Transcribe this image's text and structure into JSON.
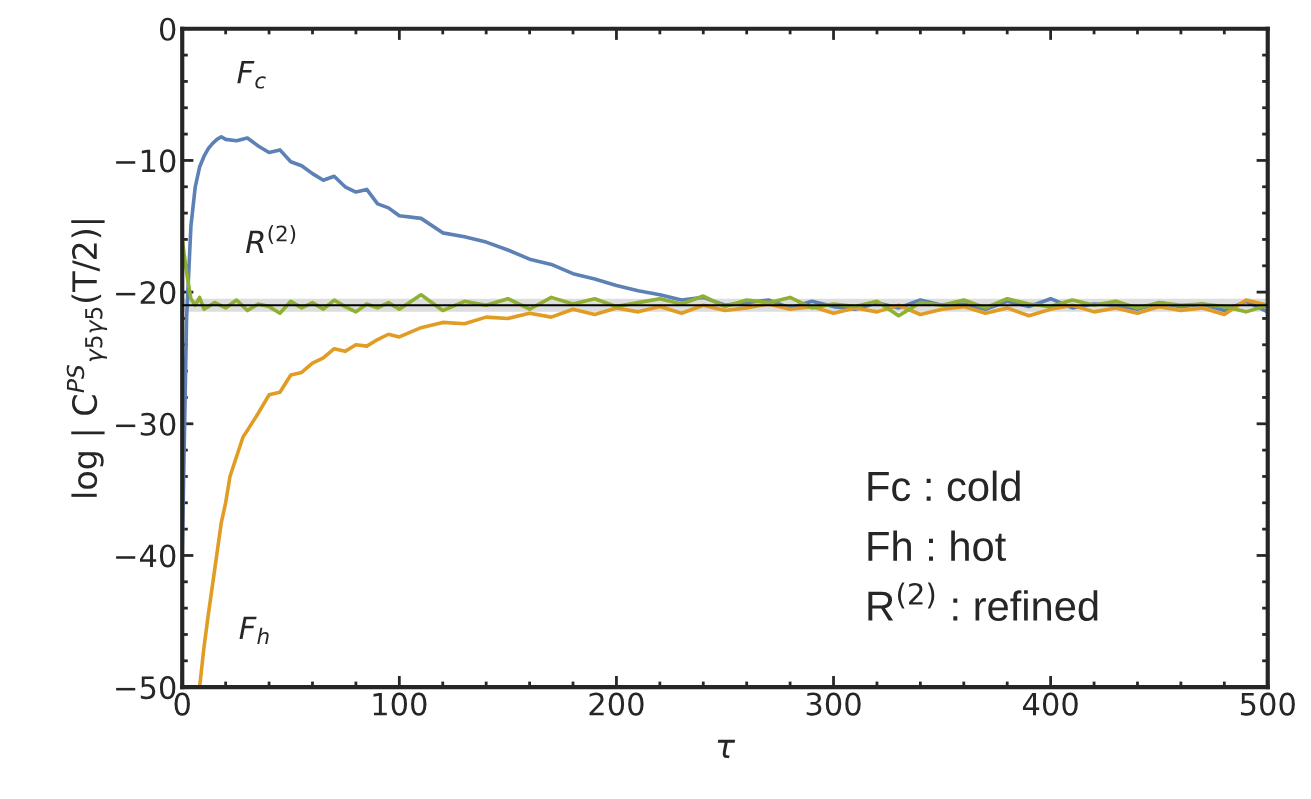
{
  "chart_data": {
    "type": "line",
    "xlabel": "τ",
    "ylabel": "log | C$^{PS}$$_{γ5γ5}$(T/2)|",
    "xlim": [
      0,
      500
    ],
    "ylim": [
      -50,
      0
    ],
    "xticks": [
      0,
      100,
      200,
      300,
      400,
      500
    ],
    "yticks": [
      -50,
      -40,
      -30,
      -20,
      -10,
      0
    ],
    "grid": false,
    "marker": "none",
    "line_style": "solid",
    "series": [
      {
        "color": "#5e81b5",
        "x": [
          0,
          2,
          4,
          6,
          8,
          10,
          12,
          14,
          16,
          18,
          20,
          25,
          30,
          35,
          40,
          45,
          50,
          55,
          60,
          65,
          70,
          75,
          80,
          85,
          90,
          95,
          100,
          110,
          120,
          130,
          140,
          150,
          160,
          170,
          180,
          190,
          200,
          210,
          220,
          230,
          240,
          250,
          260,
          270,
          280,
          290,
          300,
          310,
          320,
          330,
          340,
          350,
          360,
          370,
          380,
          390,
          400,
          410,
          420,
          430,
          440,
          450,
          460,
          470,
          480,
          490,
          500
        ],
        "values": [
          -40,
          -22,
          -15,
          -12,
          -10.5,
          -9.7,
          -9.1,
          -8.7,
          -8.4,
          -8.2,
          -8.4,
          -8.5,
          -8.3,
          -8.9,
          -9.4,
          -9.2,
          -10.1,
          -10.4,
          -11.0,
          -11.5,
          -11.2,
          -12.0,
          -12.4,
          -12.2,
          -13.3,
          -13.6,
          -14.2,
          -14.4,
          -15.5,
          -15.8,
          -16.2,
          -16.8,
          -17.5,
          -17.9,
          -18.6,
          -19.0,
          -19.5,
          -19.9,
          -20.2,
          -20.6,
          -20.4,
          -21.0,
          -20.8,
          -20.6,
          -21.2,
          -20.7,
          -21.1,
          -21.3,
          -20.8,
          -21.2,
          -20.6,
          -21.0,
          -20.9,
          -21.3,
          -20.7,
          -21.1,
          -20.5,
          -21.2,
          -20.9,
          -21.0,
          -21.3,
          -20.8,
          -21.1,
          -20.9,
          -21.4,
          -20.7,
          -21.5
        ]
      },
      {
        "color": "#e19c24",
        "x": [
          8,
          10,
          12,
          15,
          18,
          20,
          22,
          25,
          28,
          30,
          35,
          40,
          45,
          50,
          55,
          60,
          65,
          70,
          75,
          80,
          85,
          90,
          95,
          100,
          110,
          120,
          130,
          140,
          150,
          160,
          170,
          180,
          190,
          200,
          210,
          220,
          230,
          240,
          250,
          260,
          270,
          280,
          290,
          300,
          310,
          320,
          330,
          340,
          350,
          360,
          370,
          380,
          390,
          400,
          410,
          420,
          430,
          440,
          450,
          460,
          470,
          480,
          490,
          500
        ],
        "values": [
          -50,
          -47,
          -44.5,
          -41,
          -37.5,
          -36,
          -34,
          -32.5,
          -31,
          -30.5,
          -29.2,
          -27.8,
          -27.6,
          -26.3,
          -26.1,
          -25.4,
          -25.0,
          -24.3,
          -24.5,
          -24.0,
          -24.1,
          -23.6,
          -23.2,
          -23.4,
          -22.7,
          -22.3,
          -22.4,
          -21.9,
          -22.0,
          -21.6,
          -21.9,
          -21.3,
          -21.7,
          -21.2,
          -21.5,
          -21.1,
          -21.6,
          -21.0,
          -21.4,
          -21.2,
          -20.9,
          -21.3,
          -21.1,
          -21.6,
          -21.2,
          -21.5,
          -21.0,
          -21.7,
          -21.3,
          -21.1,
          -21.6,
          -21.2,
          -21.8,
          -21.3,
          -21.0,
          -21.5,
          -21.2,
          -21.6,
          -21.1,
          -21.4,
          -21.2,
          -21.7,
          -20.6,
          -21.0
        ]
      },
      {
        "color": "#8fb032",
        "x": [
          0,
          2,
          4,
          6,
          8,
          10,
          15,
          20,
          25,
          30,
          35,
          40,
          45,
          50,
          55,
          60,
          65,
          70,
          75,
          80,
          85,
          90,
          95,
          100,
          110,
          120,
          130,
          140,
          150,
          160,
          170,
          180,
          190,
          200,
          210,
          220,
          230,
          240,
          250,
          260,
          270,
          280,
          290,
          300,
          310,
          320,
          330,
          340,
          350,
          360,
          370,
          380,
          390,
          400,
          410,
          420,
          430,
          440,
          450,
          460,
          470,
          480,
          490,
          500
        ],
        "values": [
          -16,
          -18.5,
          -20.5,
          -21.0,
          -20.4,
          -21.3,
          -20.8,
          -21.2,
          -20.6,
          -21.4,
          -20.9,
          -21.1,
          -21.6,
          -20.7,
          -21.2,
          -20.8,
          -21.3,
          -20.6,
          -21.1,
          -21.5,
          -20.9,
          -21.2,
          -20.8,
          -21.3,
          -20.2,
          -21.4,
          -20.7,
          -21.0,
          -20.5,
          -21.3,
          -20.4,
          -20.9,
          -20.5,
          -21.1,
          -20.8,
          -20.5,
          -20.9,
          -20.3,
          -21.1,
          -20.6,
          -20.8,
          -20.4,
          -21.2,
          -20.9,
          -21.1,
          -20.7,
          -21.8,
          -20.8,
          -21.0,
          -20.6,
          -21.2,
          -20.5,
          -20.9,
          -21.1,
          -20.6,
          -21.0,
          -20.7,
          -21.2,
          -20.8,
          -21.0,
          -20.9,
          -21.1,
          -21.5,
          -21.0
        ]
      }
    ],
    "ref_lines": [
      {
        "axis": "y",
        "value": -21,
        "color": "#000000",
        "line_style": "solid"
      }
    ],
    "bands": [
      {
        "axis": "y",
        "from": -21.5,
        "to": -20.5,
        "color": "#dddddd"
      }
    ],
    "annotations": [
      "F$_{c}$",
      "R$^{(2)}$",
      "F$_{h}$",
      "Fc : cold",
      "Fh : hot",
      "R$^{(2)}$ : refined"
    ]
  }
}
